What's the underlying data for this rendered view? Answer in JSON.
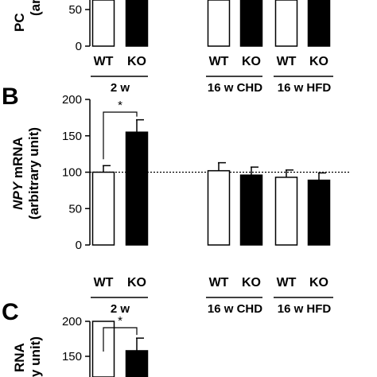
{
  "panel_labels": [
    "B",
    "C"
  ],
  "cropped_text": {
    "panel_a_ylabel_fragment": "PC",
    "panel_a_unit_fragment": "(ar",
    "panel_c_ylabel_fragment": "RNA",
    "panel_c_unit_fragment": "y unit)"
  },
  "chart_data": [
    {
      "type": "bar",
      "panel": "A",
      "ylabel": "",
      "ylim": [
        0,
        100
      ],
      "yticks": [
        0,
        50
      ],
      "categories": [
        "WT",
        "KO",
        "WT",
        "KO",
        "WT",
        "KO"
      ],
      "groups": [
        "2 w",
        "16 w CHD",
        "16 w HFD"
      ],
      "values": [
        null,
        null,
        null,
        null,
        null,
        null
      ],
      "fills": [
        "#ffffff",
        "#000000",
        "#ffffff",
        "#000000",
        "#ffffff",
        "#000000"
      ]
    },
    {
      "type": "bar",
      "panel": "B",
      "ylabel_gene": "NPY",
      "ylabel_rest": " mRNA",
      "ylabel_unit": "(arbitrary unit)",
      "ylim": [
        0,
        200
      ],
      "yticks": [
        0,
        50,
        100,
        150,
        200
      ],
      "reference_line": 100,
      "categories": [
        "WT",
        "KO",
        "WT",
        "KO",
        "WT",
        "KO"
      ],
      "groups": [
        "2 w",
        "16 w CHD",
        "16 w HFD"
      ],
      "values": [
        100,
        155,
        102,
        96,
        93,
        89
      ],
      "errors": [
        9,
        17,
        11,
        11,
        10,
        10
      ],
      "fills": [
        "#ffffff",
        "#000000",
        "#ffffff",
        "#000000",
        "#ffffff",
        "#000000"
      ],
      "significance": {
        "between": [
          0,
          1
        ],
        "label": "*"
      }
    },
    {
      "type": "bar",
      "panel": "C",
      "ylabel": "",
      "ylim": [
        0,
        200
      ],
      "yticks": [
        150,
        200
      ],
      "categories": [
        "WT",
        "KO"
      ],
      "values": [
        null,
        158
      ],
      "errors": [
        null,
        18
      ],
      "fills": [
        "#ffffff",
        "#000000"
      ],
      "significance": {
        "between": [
          0,
          1
        ],
        "label": "*"
      }
    }
  ],
  "colors": {
    "wt_fill": "#ffffff",
    "ko_fill": "#000000",
    "axis": "#000000"
  }
}
